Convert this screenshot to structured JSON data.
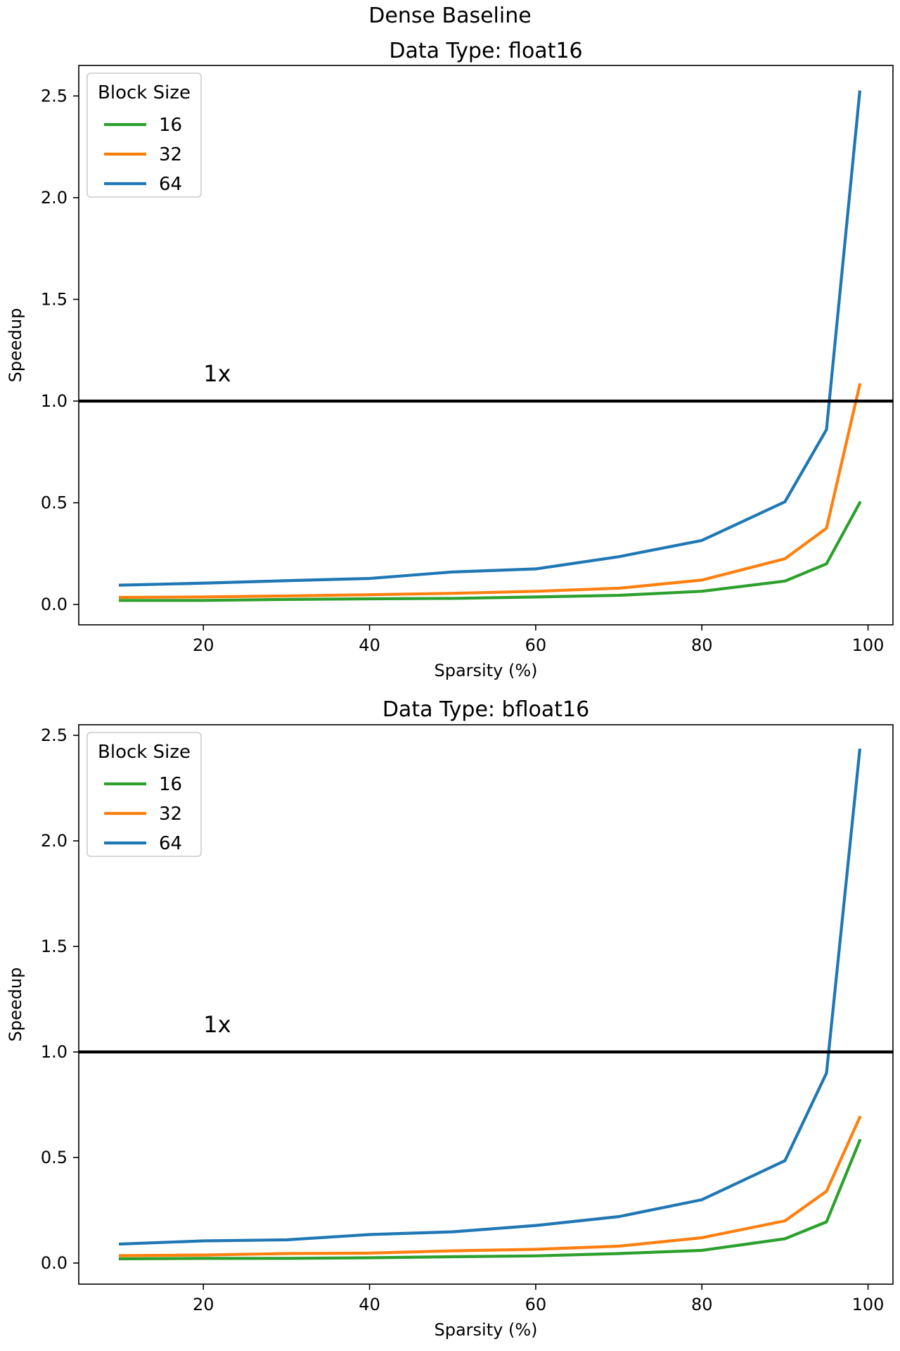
{
  "figure": {
    "suptitle": "Dense Baseline"
  },
  "chart_data": [
    {
      "type": "line",
      "title": "Data Type: float16",
      "xlabel": "Sparsity (%)",
      "ylabel": "Speedup",
      "xlim": [
        5,
        103
      ],
      "ylim": [
        -0.1,
        2.65
      ],
      "xticks": [
        20,
        40,
        60,
        80,
        100
      ],
      "yticks": [
        0.0,
        0.5,
        1.0,
        1.5,
        2.0,
        2.5
      ],
      "grid": false,
      "legend": {
        "title": "Block Size",
        "placement": "upper left"
      },
      "x": [
        10,
        20,
        30,
        40,
        50,
        60,
        70,
        80,
        90,
        95,
        99
      ],
      "series": [
        {
          "name": "16",
          "color": "#2ca02c",
          "values": [
            0.02,
            0.02,
            0.025,
            0.028,
            0.03,
            0.037,
            0.045,
            0.065,
            0.115,
            0.2,
            0.5
          ]
        },
        {
          "name": "32",
          "color": "#ff7f0e",
          "values": [
            0.035,
            0.037,
            0.042,
            0.048,
            0.055,
            0.065,
            0.08,
            0.12,
            0.225,
            0.375,
            1.08
          ]
        },
        {
          "name": "64",
          "color": "#1f77b4",
          "values": [
            0.095,
            0.105,
            0.117,
            0.128,
            0.16,
            0.175,
            0.235,
            0.315,
            0.505,
            0.86,
            2.52
          ]
        }
      ],
      "reference_line": {
        "y": 1.0,
        "color": "#000000",
        "label": "1x"
      }
    },
    {
      "type": "line",
      "title": "Data Type: bfloat16",
      "xlabel": "Sparsity (%)",
      "ylabel": "Speedup",
      "xlim": [
        5,
        103
      ],
      "ylim": [
        -0.1,
        2.55
      ],
      "xticks": [
        20,
        40,
        60,
        80,
        100
      ],
      "yticks": [
        0.0,
        0.5,
        1.0,
        1.5,
        2.0,
        2.5
      ],
      "grid": false,
      "legend": {
        "title": "Block Size",
        "placement": "upper left"
      },
      "x": [
        10,
        20,
        30,
        40,
        50,
        60,
        70,
        80,
        90,
        95,
        99
      ],
      "series": [
        {
          "name": "16",
          "color": "#2ca02c",
          "values": [
            0.02,
            0.022,
            0.022,
            0.025,
            0.03,
            0.034,
            0.045,
            0.06,
            0.115,
            0.195,
            0.58
          ]
        },
        {
          "name": "32",
          "color": "#ff7f0e",
          "values": [
            0.035,
            0.038,
            0.045,
            0.047,
            0.058,
            0.065,
            0.08,
            0.12,
            0.2,
            0.34,
            0.69
          ]
        },
        {
          "name": "64",
          "color": "#1f77b4",
          "values": [
            0.09,
            0.105,
            0.11,
            0.135,
            0.148,
            0.178,
            0.22,
            0.3,
            0.485,
            0.9,
            2.43
          ]
        }
      ],
      "reference_line": {
        "y": 1.0,
        "color": "#000000",
        "label": "1x"
      }
    }
  ]
}
